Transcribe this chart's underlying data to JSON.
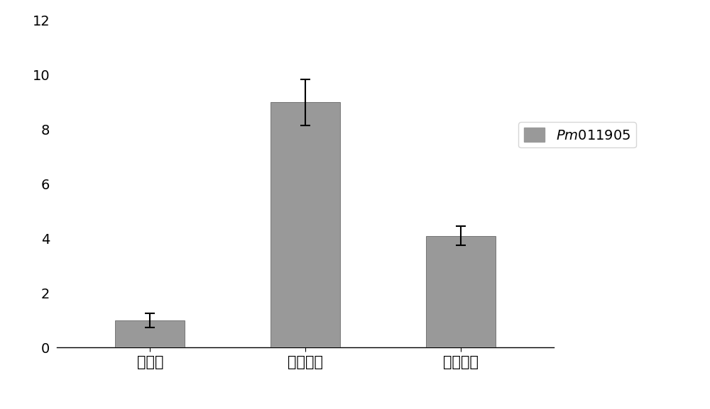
{
  "categories": [
    "类休眠",
    "生理休眠",
    "生态休眠"
  ],
  "values": [
    1.0,
    9.0,
    4.1
  ],
  "errors": [
    0.25,
    0.85,
    0.35
  ],
  "bar_color": "#999999",
  "bar_width": 0.45,
  "ylim": [
    0,
    12
  ],
  "yticks": [
    0,
    2,
    4,
    6,
    8,
    10,
    12
  ],
  "legend_label": "Pm011905",
  "background_color": "#ffffff",
  "figsize": [
    10.0,
    5.77
  ],
  "dpi": 100
}
